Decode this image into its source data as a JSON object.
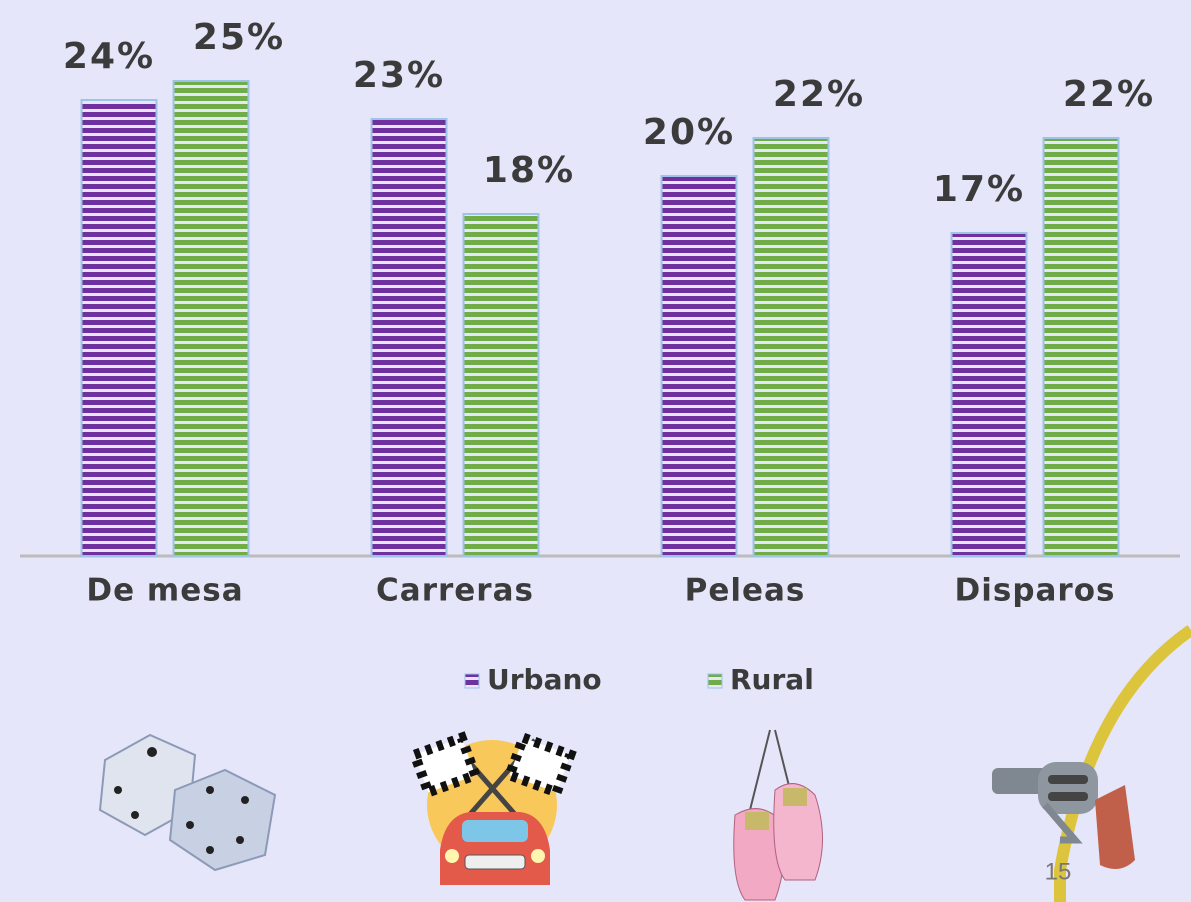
{
  "chart_data": {
    "type": "bar",
    "categories": [
      "De mesa",
      "Carreras",
      "Peleas",
      "Disparos"
    ],
    "series": [
      {
        "name": "Urbano",
        "color": "#7030a0",
        "values": [
          24,
          23,
          20,
          17
        ],
        "value_labels": [
          "24%",
          "23%",
          "20%",
          "17%"
        ]
      },
      {
        "name": "Rural",
        "color": "#70ad47",
        "values": [
          25,
          18,
          22,
          22
        ],
        "value_labels": [
          "25%",
          "18%",
          "22%",
          "22%"
        ]
      }
    ],
    "ylim": [
      0,
      25
    ],
    "grid": false,
    "legend": "bottom"
  },
  "page_number": "15"
}
